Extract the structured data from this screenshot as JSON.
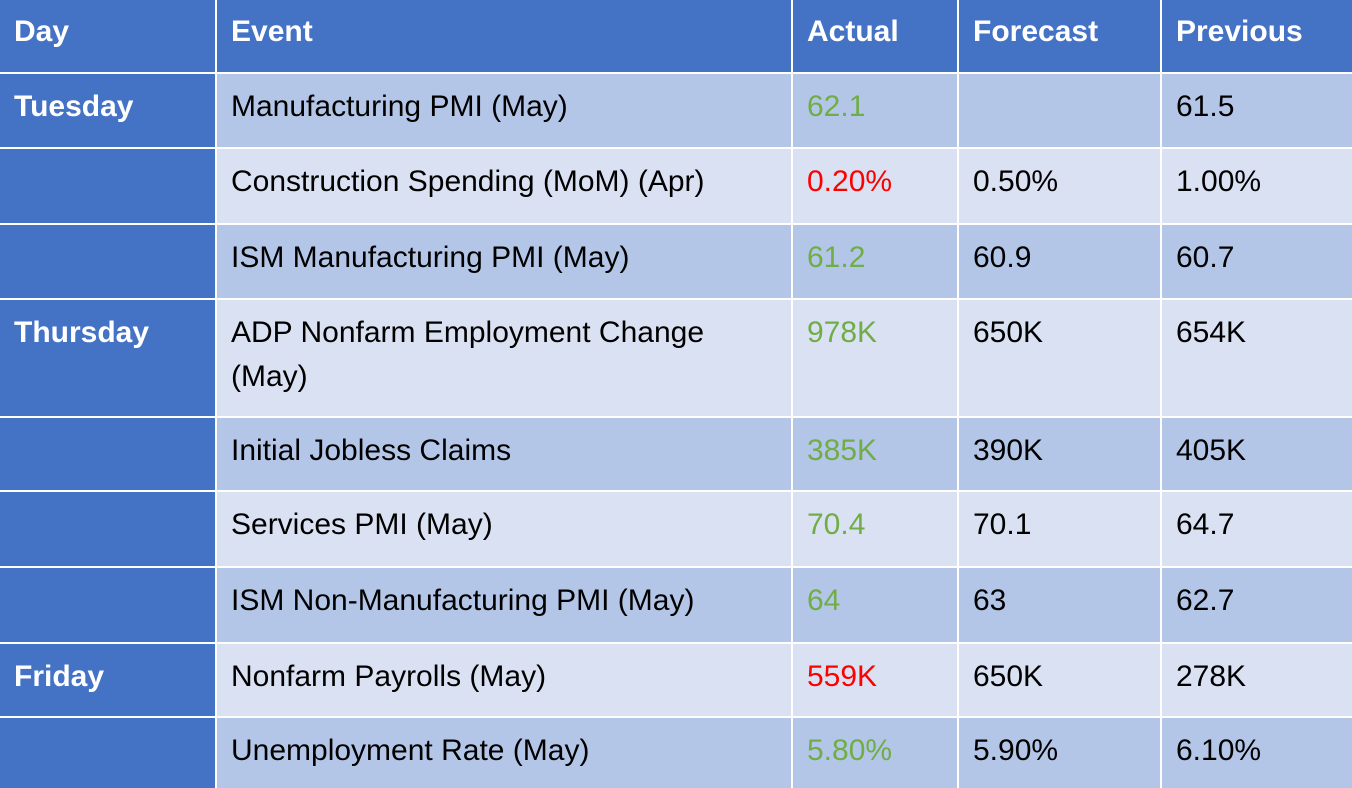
{
  "colors": {
    "header_bg": "#4472c4",
    "row_odd_bg": "#b4c6e7",
    "row_even_bg": "#dae1f2",
    "actual_better": "#70ad47",
    "actual_worse": "#ff0000"
  },
  "headers": {
    "day": "Day",
    "event": "Event",
    "actual": "Actual",
    "forecast": "Forecast",
    "previous": "Previous"
  },
  "rows": [
    {
      "day": "Tuesday",
      "event": "Manufacturing PMI (May)",
      "actual": "62.1",
      "actual_status": "positive",
      "forecast": "",
      "previous": "61.5"
    },
    {
      "day": "",
      "event": "Construction Spending (MoM) (Apr)",
      "actual": "0.20%",
      "actual_status": "negative",
      "forecast": "0.50%",
      "previous": "1.00%"
    },
    {
      "day": "",
      "event": "ISM Manufacturing PMI (May)",
      "actual": "61.2",
      "actual_status": "positive",
      "forecast": "60.9",
      "previous": "60.7"
    },
    {
      "day": "Thursday",
      "event": "ADP Nonfarm Employment Change (May)",
      "actual": "978K",
      "actual_status": "positive",
      "forecast": "650K",
      "previous": "654K"
    },
    {
      "day": "",
      "event": "Initial Jobless Claims",
      "actual": "385K",
      "actual_status": "positive",
      "forecast": "390K",
      "previous": "405K"
    },
    {
      "day": "",
      "event": "Services PMI (May)",
      "actual": "70.4",
      "actual_status": "positive",
      "forecast": "70.1",
      "previous": "64.7"
    },
    {
      "day": "",
      "event": "ISM Non-Manufacturing PMI (May)",
      "actual": "64",
      "actual_status": "positive",
      "forecast": "63",
      "previous": "62.7"
    },
    {
      "day": "Friday",
      "event": "Nonfarm Payrolls (May)",
      "actual": "559K",
      "actual_status": "negative",
      "forecast": "650K",
      "previous": "278K"
    },
    {
      "day": "",
      "event": "Unemployment Rate (May)",
      "actual": "5.80%",
      "actual_status": "positive",
      "forecast": "5.90%",
      "previous": "6.10%"
    }
  ]
}
